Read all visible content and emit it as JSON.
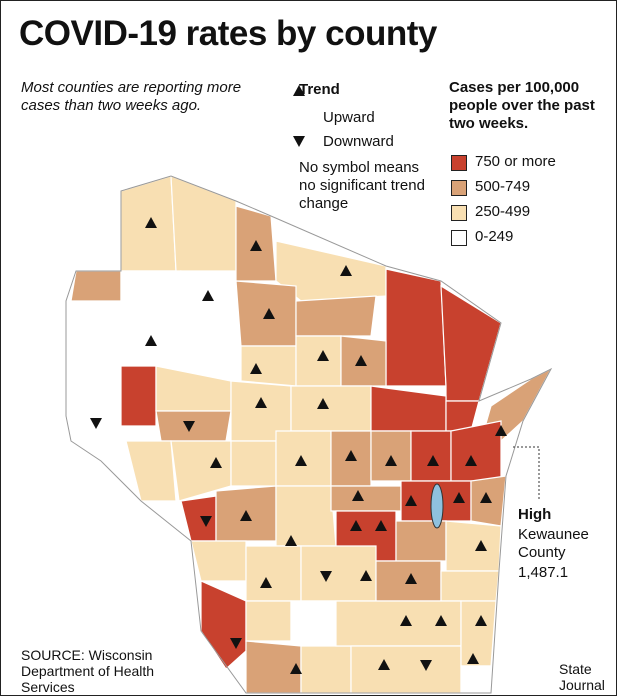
{
  "header": {
    "title": "COVID-19 rates by county",
    "subtitle": "Most counties are reporting more cases than two weeks ago."
  },
  "trend": {
    "title": "Trend",
    "up": "Upward",
    "down": "Downward",
    "note": "No symbol means no significant trend change"
  },
  "legend": {
    "title": "Cases per 100,000 people over the past two weeks.",
    "items": [
      {
        "label": "750 or more",
        "color": "#c8412e"
      },
      {
        "label": "500-749",
        "color": "#d9a277"
      },
      {
        "label": "250-499",
        "color": "#f8dfb2"
      },
      {
        "label": "0-249",
        "color": "#ffffff"
      }
    ]
  },
  "annotation": {
    "heading": "High",
    "text": "Kewaunee County",
    "value": "1,487.1"
  },
  "source": "SOURCE: Wisconsin Department of Health Services",
  "credit": "State Journal"
}
